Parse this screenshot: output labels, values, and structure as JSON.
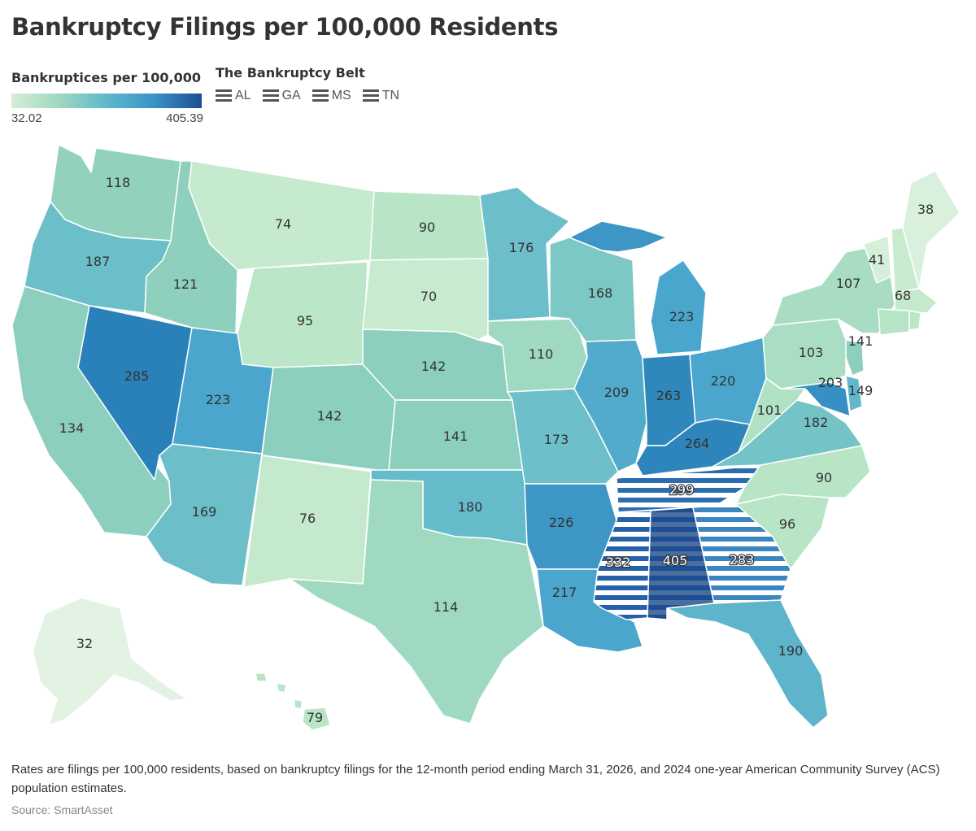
{
  "title": "Bankruptcy Filings per 100,000 Residents",
  "legend": {
    "scale_title": "Bankruptices per 100,000",
    "min_label": "32.02",
    "max_label": "405.39",
    "belt_title": "The Bankruptcy Belt",
    "belt_states": [
      "AL",
      "GA",
      "MS",
      "TN"
    ]
  },
  "colors": {
    "min": "#d4efd6",
    "max": "#1d4d94",
    "stripe": "#1d5fa6"
  },
  "states": {
    "WA": "118",
    "OR": "187",
    "CA": "134",
    "NV": "285",
    "ID": "121",
    "MT": "74",
    "WY": "95",
    "UT": "223",
    "AZ": "169",
    "CO": "142",
    "NM": "76",
    "ND": "90",
    "SD": "70",
    "NE": "142",
    "KS": "141",
    "OK": "180",
    "TX": "114",
    "MN": "176",
    "IA": "110",
    "MO": "173",
    "AR": "226",
    "LA": "217",
    "WI": "168",
    "IL": "209",
    "MI": "223",
    "IN": "263",
    "OH": "220",
    "KY": "264",
    "TN": "299",
    "MS": "332",
    "AL": "405",
    "GA": "283",
    "FL": "190",
    "SC": "96",
    "NC": "90",
    "VA": "182",
    "WV": "101",
    "MD": "203",
    "DE": "149",
    "NJ": "141",
    "PA": "103",
    "NY": "107",
    "VT": "41",
    "NH": "68",
    "ME": "38",
    "AK": "32",
    "HI": "79"
  },
  "footnote": "Rates are filings per 100,000 residents, based on bankruptcy filings for the 12-month period ending March 31, 2026, and 2024 one-year American Community Survey (ACS) population estimates.",
  "source": "Source: SmartAsset"
}
